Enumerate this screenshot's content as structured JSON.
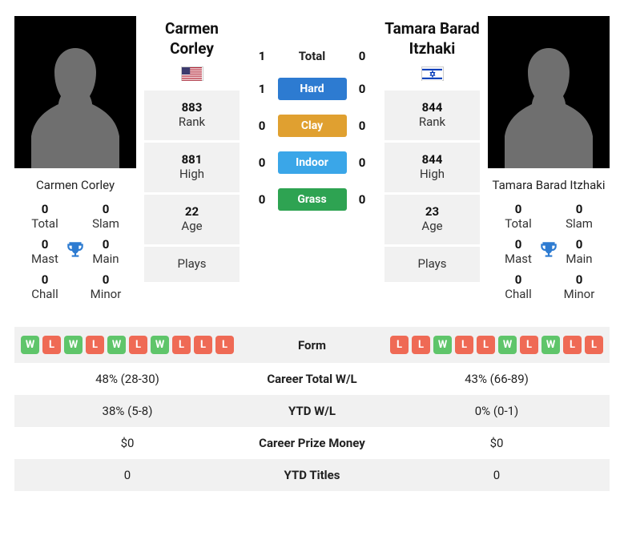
{
  "p1": {
    "name": "Carmen Corley",
    "flag_svg": "<svg viewBox='0 0 28 18'><rect width='28' height='18' fill='#b22234'/><rect y='1.4' width='28' height='1.4' fill='#fff'/><rect y='4.2' width='28' height='1.4' fill='#fff'/><rect y='7' width='28' height='1.4' fill='#fff'/><rect y='9.8' width='28' height='1.4' fill='#fff'/><rect y='12.6' width='28' height='1.4' fill='#fff'/><rect y='15.4' width='28' height='1.4' fill='#fff'/><rect width='11' height='9.7' fill='#3c3b6e'/></svg>",
    "titles": {
      "total": "0",
      "slam": "0",
      "mast": "0",
      "main": "0",
      "chall": "0",
      "minor": "0"
    },
    "stats": {
      "rank": "883",
      "high": "881",
      "age": "22",
      "plays": ""
    },
    "form": [
      "W",
      "L",
      "W",
      "L",
      "W",
      "L",
      "W",
      "L",
      "L",
      "L"
    ],
    "career_wl": "48% (28-30)",
    "ytd_wl": "38% (5-8)",
    "prize": "$0",
    "ytd_titles": "0"
  },
  "p2": {
    "name": "Tamara Barad Itzhaki",
    "flag_svg": "<svg viewBox='0 0 28 18'><rect width='28' height='18' fill='#fff'/><rect y='2' width='28' height='2.2' fill='#0038b8'/><rect y='13.8' width='28' height='2.2' fill='#0038b8'/><path d='M14 5 L17 11 L11 11 Z M14 13 L11 7 L17 7 Z' fill='none' stroke='#0038b8' stroke-width='1'/></svg>",
    "titles": {
      "total": "0",
      "slam": "0",
      "mast": "0",
      "main": "0",
      "chall": "0",
      "minor": "0"
    },
    "stats": {
      "rank": "844",
      "high": "844",
      "age": "23",
      "plays": ""
    },
    "form": [
      "L",
      "L",
      "W",
      "L",
      "L",
      "W",
      "L",
      "W",
      "L",
      "L"
    ],
    "career_wl": "43% (66-89)",
    "ytd_wl": "0% (0-1)",
    "prize": "$0",
    "ytd_titles": "0"
  },
  "labels": {
    "rank": "Rank",
    "high": "High",
    "age": "Age",
    "plays": "Plays",
    "total_t": "Total",
    "slam": "Slam",
    "mast": "Mast",
    "main": "Main",
    "chall": "Chall",
    "minor": "Minor",
    "h2h_total": "Total",
    "form": "Form",
    "career_wl": "Career Total W/L",
    "ytd_wl": "YTD W/L",
    "prize": "Career Prize Money",
    "ytd_titles": "YTD Titles"
  },
  "h2h": {
    "total": {
      "p1": "1",
      "p2": "0"
    },
    "surfaces": [
      {
        "label": "Hard",
        "p1": "1",
        "p2": "0",
        "color": "#2d7bd1"
      },
      {
        "label": "Clay",
        "p1": "0",
        "p2": "0",
        "color": "#e0a030"
      },
      {
        "label": "Indoor",
        "p1": "0",
        "p2": "0",
        "color": "#3aa6e8"
      },
      {
        "label": "Grass",
        "p1": "0",
        "p2": "0",
        "color": "#2ea352"
      }
    ]
  },
  "colors": {
    "win": "#5fc56a",
    "loss": "#ef6a55"
  }
}
